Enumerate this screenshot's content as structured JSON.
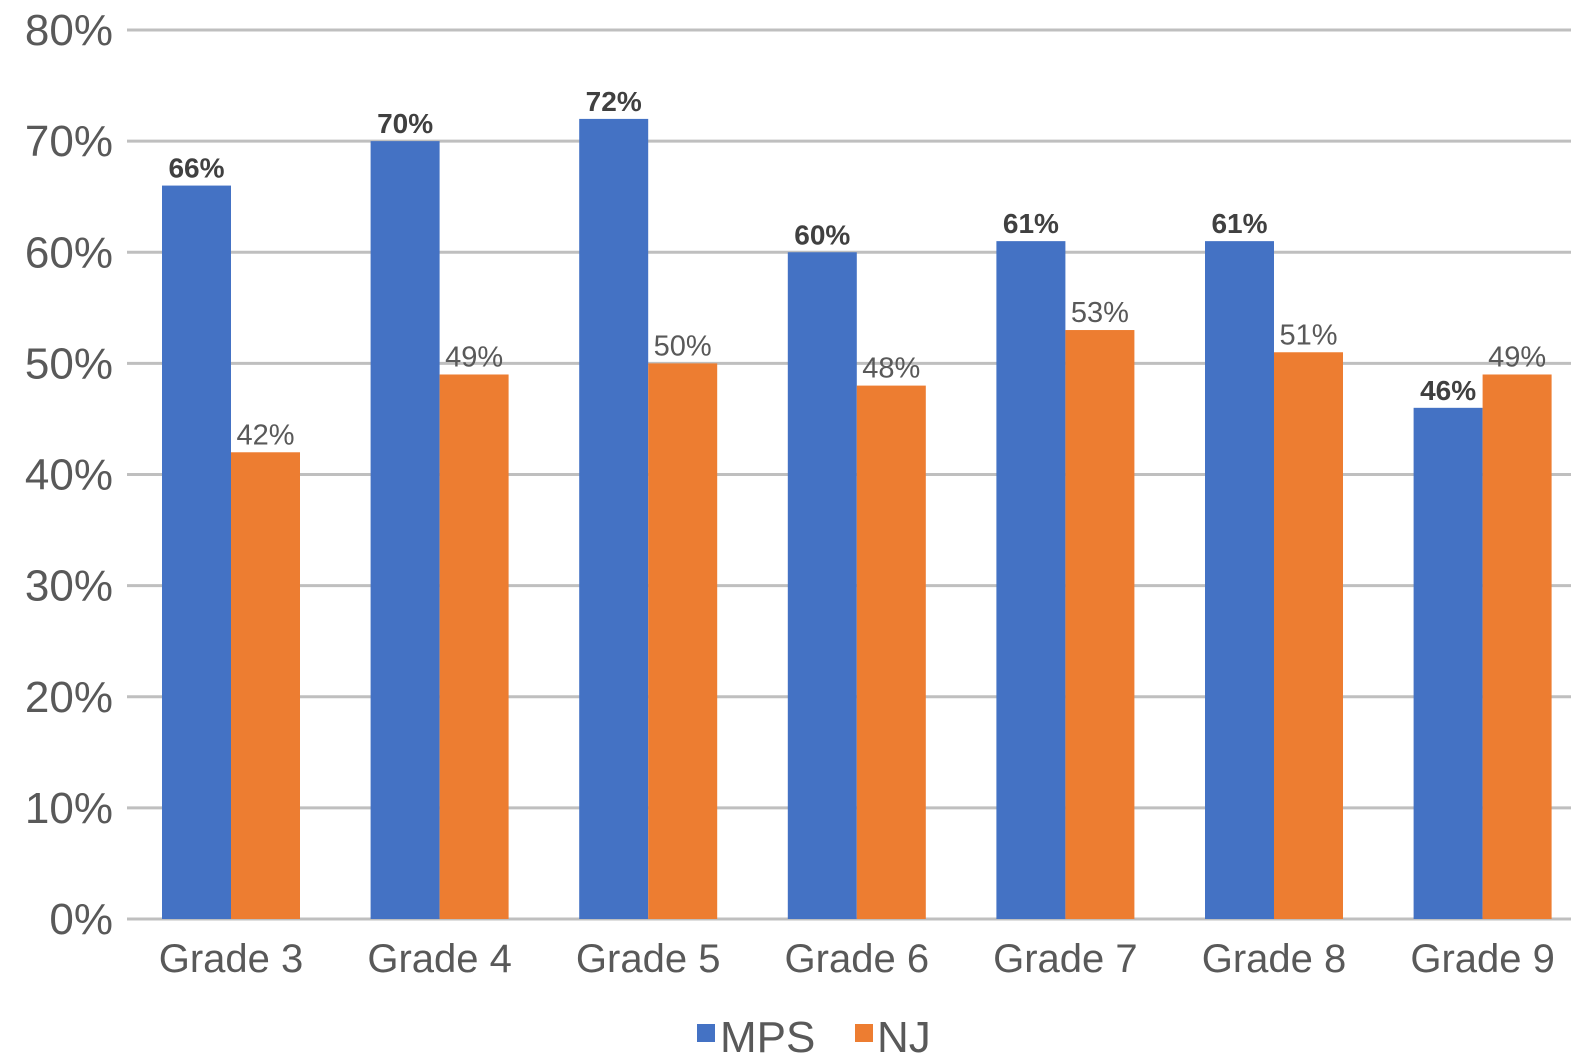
{
  "chart_data": {
    "type": "bar",
    "categories": [
      "Grade 3",
      "Grade 4",
      "Grade 5",
      "Grade 6",
      "Grade 7",
      "Grade 8",
      "Grade 9"
    ],
    "series": [
      {
        "name": "MPS",
        "color": "#4472C4",
        "values": [
          66,
          70,
          72,
          60,
          61,
          61,
          46
        ],
        "labels": [
          "66%",
          "70%",
          "72%",
          "60%",
          "61%",
          "61%",
          "46%"
        ]
      },
      {
        "name": "NJ",
        "color": "#ED7D31",
        "values": [
          42,
          49,
          50,
          48,
          53,
          51,
          49
        ],
        "labels": [
          "42%",
          "49%",
          "50%",
          "48%",
          "53%",
          "51%",
          "49%"
        ]
      }
    ],
    "title": "",
    "xlabel": "",
    "ylabel": "",
    "ylim": [
      0,
      80
    ],
    "yticks": [
      "0%",
      "10%",
      "20%",
      "30%",
      "40%",
      "50%",
      "60%",
      "70%",
      "80%"
    ],
    "grid": true,
    "legend_position": "bottom",
    "gridline_color": "#bfbfbf"
  }
}
